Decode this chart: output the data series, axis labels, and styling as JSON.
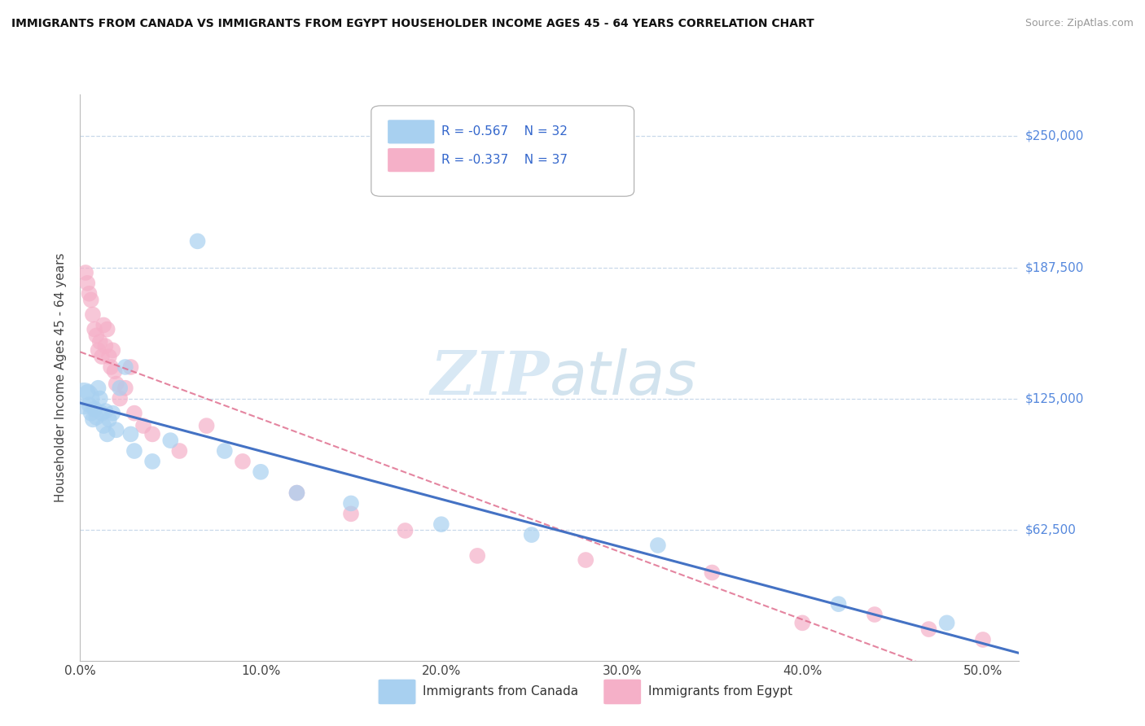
{
  "title": "IMMIGRANTS FROM CANADA VS IMMIGRANTS FROM EGYPT HOUSEHOLDER INCOME AGES 45 - 64 YEARS CORRELATION CHART",
  "source": "Source: ZipAtlas.com",
  "ylabel": "Householder Income Ages 45 - 64 years",
  "ytick_labels": [
    "$62,500",
    "$125,000",
    "$187,500",
    "$250,000"
  ],
  "ytick_values": [
    62500,
    125000,
    187500,
    250000
  ],
  "xtick_positions": [
    0.0,
    0.1,
    0.2,
    0.3,
    0.4,
    0.5
  ],
  "xtick_labels": [
    "0.0%",
    "10.0%",
    "20.0%",
    "30.0%",
    "40.0%",
    "50.0%"
  ],
  "xlim": [
    0.0,
    0.52
  ],
  "ylim": [
    0,
    270000
  ],
  "legend1_r": "-0.567",
  "legend1_n": "32",
  "legend2_r": "-0.337",
  "legend2_n": "37",
  "canada_color": "#a8d0f0",
  "egypt_color": "#f5b0c8",
  "canada_line_color": "#4472c4",
  "egypt_line_color": "#e07090",
  "watermark_zip": "ZIP",
  "watermark_atlas": "atlas",
  "background_color": "#ffffff",
  "grid_color": "#c8d8ea",
  "canada_x": [
    0.002,
    0.004,
    0.005,
    0.006,
    0.007,
    0.008,
    0.009,
    0.01,
    0.011,
    0.012,
    0.013,
    0.014,
    0.015,
    0.016,
    0.018,
    0.02,
    0.022,
    0.025,
    0.028,
    0.03,
    0.04,
    0.05,
    0.065,
    0.08,
    0.1,
    0.12,
    0.15,
    0.2,
    0.25,
    0.32,
    0.42,
    0.48
  ],
  "canada_y": [
    125000,
    128000,
    122000,
    118000,
    115000,
    120000,
    116000,
    130000,
    125000,
    118000,
    112000,
    119000,
    108000,
    115000,
    118000,
    110000,
    130000,
    140000,
    108000,
    100000,
    95000,
    105000,
    200000,
    100000,
    90000,
    80000,
    75000,
    65000,
    60000,
    55000,
    27000,
    18000
  ],
  "canada_sizes": [
    800,
    200,
    200,
    200,
    200,
    200,
    200,
    200,
    200,
    200,
    200,
    200,
    200,
    200,
    200,
    200,
    200,
    200,
    200,
    200,
    200,
    200,
    200,
    200,
    200,
    200,
    200,
    200,
    200,
    200,
    200,
    200
  ],
  "egypt_x": [
    0.003,
    0.004,
    0.005,
    0.006,
    0.007,
    0.008,
    0.009,
    0.01,
    0.011,
    0.012,
    0.013,
    0.014,
    0.015,
    0.016,
    0.017,
    0.018,
    0.019,
    0.02,
    0.022,
    0.025,
    0.028,
    0.03,
    0.035,
    0.04,
    0.055,
    0.07,
    0.09,
    0.12,
    0.15,
    0.18,
    0.22,
    0.28,
    0.35,
    0.4,
    0.44,
    0.47,
    0.5
  ],
  "egypt_y": [
    185000,
    180000,
    175000,
    172000,
    165000,
    158000,
    155000,
    148000,
    152000,
    145000,
    160000,
    150000,
    158000,
    145000,
    140000,
    148000,
    138000,
    132000,
    125000,
    130000,
    140000,
    118000,
    112000,
    108000,
    100000,
    112000,
    95000,
    80000,
    70000,
    62000,
    50000,
    48000,
    42000,
    18000,
    22000,
    15000,
    10000
  ],
  "egypt_sizes": [
    200,
    200,
    200,
    200,
    200,
    200,
    200,
    200,
    200,
    200,
    200,
    200,
    200,
    200,
    200,
    200,
    200,
    200,
    200,
    200,
    200,
    200,
    200,
    200,
    200,
    200,
    200,
    200,
    200,
    200,
    200,
    200,
    200,
    200,
    200,
    200,
    200
  ],
  "bottom_legend_canada": "Immigrants from Canada",
  "bottom_legend_egypt": "Immigrants from Egypt"
}
